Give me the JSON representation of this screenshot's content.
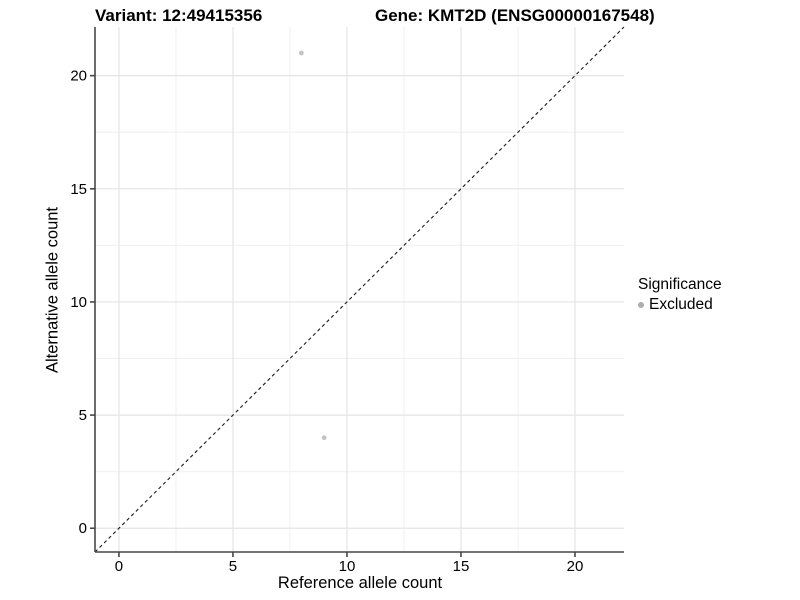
{
  "chart_data": {
    "type": "scatter",
    "titles": {
      "left": "Variant: 12:49415356",
      "right": "Gene: KMT2D (ENSG00000167548)"
    },
    "xlabel": "Reference allele count",
    "ylabel": "Alternative allele count",
    "xlim": [
      -1.05,
      22.15
    ],
    "ylim": [
      -1.05,
      22.15
    ],
    "xticks": [
      0,
      5,
      10,
      15,
      20
    ],
    "yticks": [
      0,
      5,
      10,
      15,
      20
    ],
    "grid": "major and minor gridlines, white panel background",
    "points": [
      {
        "x": 8,
        "y": 21,
        "series": "Excluded"
      },
      {
        "x": 9,
        "y": 4,
        "series": "Excluded"
      }
    ],
    "reference_line": {
      "type": "identity",
      "slope": 1,
      "intercept": 0,
      "style": "dashed"
    },
    "legend": {
      "title": "Significance",
      "position": "right",
      "items": [
        {
          "label": "Excluded",
          "color": "#adadad"
        }
      ]
    }
  },
  "colors": {
    "background": "#ffffff",
    "point": "#c4c4c4",
    "legend_marker": "#adadad",
    "grid_major": "#e4e4e4",
    "grid_minor": "#f0f0f0",
    "axis_line": "#474747",
    "tick_label": "#000000",
    "reference_line": "#1a1a1a"
  }
}
